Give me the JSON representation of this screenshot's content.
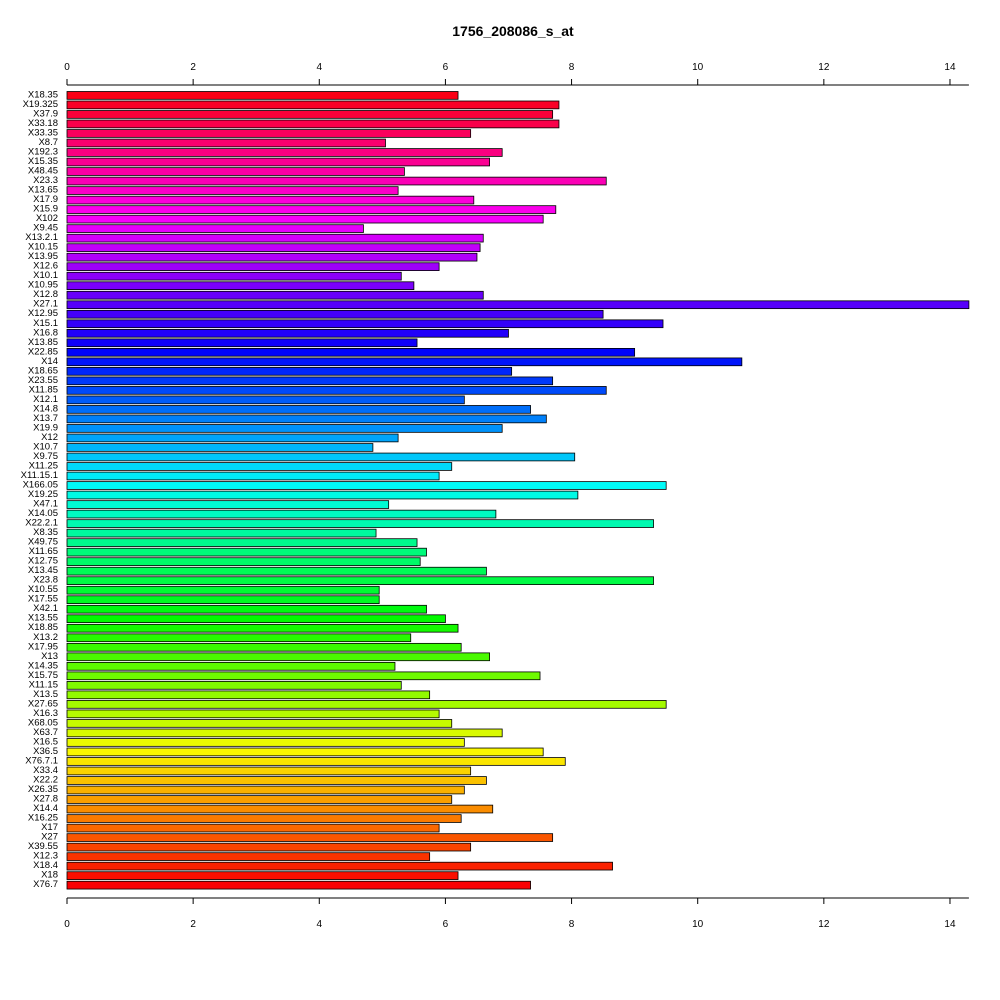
{
  "chart_data": {
    "type": "bar",
    "orientation": "horizontal",
    "title": "1756_208086_s_at",
    "xlabel": "",
    "ylabel": "",
    "xlim": [
      0,
      14.3
    ],
    "xticks": [
      0,
      2,
      4,
      6,
      8,
      10,
      12,
      14
    ],
    "axes": [
      "top",
      "bottom"
    ],
    "grid": false,
    "legend": "none",
    "bar_border_color": "#000000",
    "color_scheme": "rainbow (red → magenta → blue → cyan → green → yellow → orange → red)",
    "categories": [
      "X18.35",
      "X19.325",
      "X37.9",
      "X33.18",
      "X33.35",
      "X8.7",
      "X192.3",
      "X15.35",
      "X48.45",
      "X23.3",
      "X13.65",
      "X17.9",
      "X15.9",
      "X102",
      "X9.45",
      "X13.2.1",
      "X10.15",
      "X13.95",
      "X12.6",
      "X10.1",
      "X10.95",
      "X12.8",
      "X27.1",
      "X12.95",
      "X15.1",
      "X16.8",
      "X13.85",
      "X22.85",
      "X14",
      "X18.65",
      "X23.55",
      "X11.85",
      "X12.1",
      "X14.8",
      "X13.7",
      "X19.9",
      "X12",
      "X10.7",
      "X9.75",
      "X11.25",
      "X11.15.1",
      "X166.05",
      "X19.25",
      "X47.1",
      "X14.05",
      "X22.2.1",
      "X8.35",
      "X49.75",
      "X11.65",
      "X12.75",
      "X13.45",
      "X23.8",
      "X10.55",
      "X17.55",
      "X42.1",
      "X13.55",
      "X18.85",
      "X13.2",
      "X17.95",
      "X13",
      "X14.35",
      "X15.75",
      "X11.15",
      "X13.5",
      "X27.65",
      "X16.3",
      "X68.05",
      "X63.7",
      "X16.5",
      "X36.5",
      "X76.7.1",
      "X33.4",
      "X22.2",
      "X26.35",
      "X27.8",
      "X14.4",
      "X16.25",
      "X17",
      "X27",
      "X39.55",
      "X12.3",
      "X18.4",
      "X18",
      "X76.7"
    ],
    "values": [
      6.2,
      7.8,
      7.7,
      7.8,
      6.4,
      5.05,
      6.9,
      6.7,
      5.35,
      8.55,
      5.25,
      6.45,
      7.75,
      7.55,
      4.7,
      6.6,
      6.55,
      6.5,
      5.9,
      5.3,
      5.5,
      6.6,
      14.3,
      8.5,
      9.45,
      7.0,
      5.55,
      9.0,
      10.7,
      7.05,
      7.7,
      8.55,
      6.3,
      7.35,
      7.6,
      6.9,
      5.25,
      4.85,
      8.05,
      6.1,
      5.9,
      9.5,
      8.1,
      5.1,
      6.8,
      9.3,
      4.9,
      5.55,
      5.7,
      5.6,
      6.65,
      9.3,
      4.95,
      4.95,
      5.7,
      6.0,
      6.2,
      5.45,
      6.25,
      6.7,
      5.2,
      7.5,
      5.3,
      5.75,
      9.5,
      5.9,
      6.1,
      6.9,
      6.3,
      7.55,
      7.9,
      6.4,
      6.65,
      6.3,
      6.1,
      6.75,
      6.25,
      5.9,
      7.7,
      6.4,
      5.75,
      8.65,
      6.2,
      7.35
    ]
  }
}
